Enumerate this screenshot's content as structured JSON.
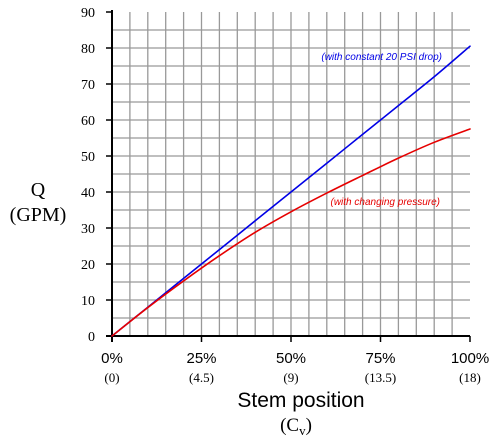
{
  "chart_data": {
    "type": "line",
    "x": [
      0,
      10,
      20,
      30,
      40,
      50,
      60,
      70,
      80,
      90,
      100
    ],
    "x_tick_labels": [
      "0%",
      "25%",
      "50%",
      "75%",
      "100%"
    ],
    "x_tick_values": [
      0,
      25,
      50,
      75,
      100
    ],
    "x_cv_labels": [
      "(0)",
      "(4.5)",
      "(9)",
      "(13.5)",
      "(18)"
    ],
    "xlabel": "Stem position",
    "xlabel_sub": "(C",
    "xlabel_sub_letter": "v",
    "xlabel_sub_close": ")",
    "ylabel": "Q",
    "ylabel_unit": "(GPM)",
    "xlim": [
      0,
      100
    ],
    "ylim": [
      0,
      90
    ],
    "y_ticks": [
      "0",
      "10",
      "20",
      "30",
      "40",
      "50",
      "60",
      "70",
      "80",
      "90"
    ],
    "grid": true,
    "series": [
      {
        "name": "(with constant 20 PSI drop)",
        "color": "#0000e6",
        "values": [
          0,
          8,
          16,
          24,
          32,
          40,
          48,
          56,
          64,
          72,
          80.5
        ]
      },
      {
        "name": "(with changing pressure)",
        "color": "#e60000",
        "values": [
          0,
          7.9,
          15.3,
          22.3,
          28.8,
          34.5,
          39.7,
          44.6,
          49.4,
          53.8,
          57.5
        ]
      }
    ]
  }
}
